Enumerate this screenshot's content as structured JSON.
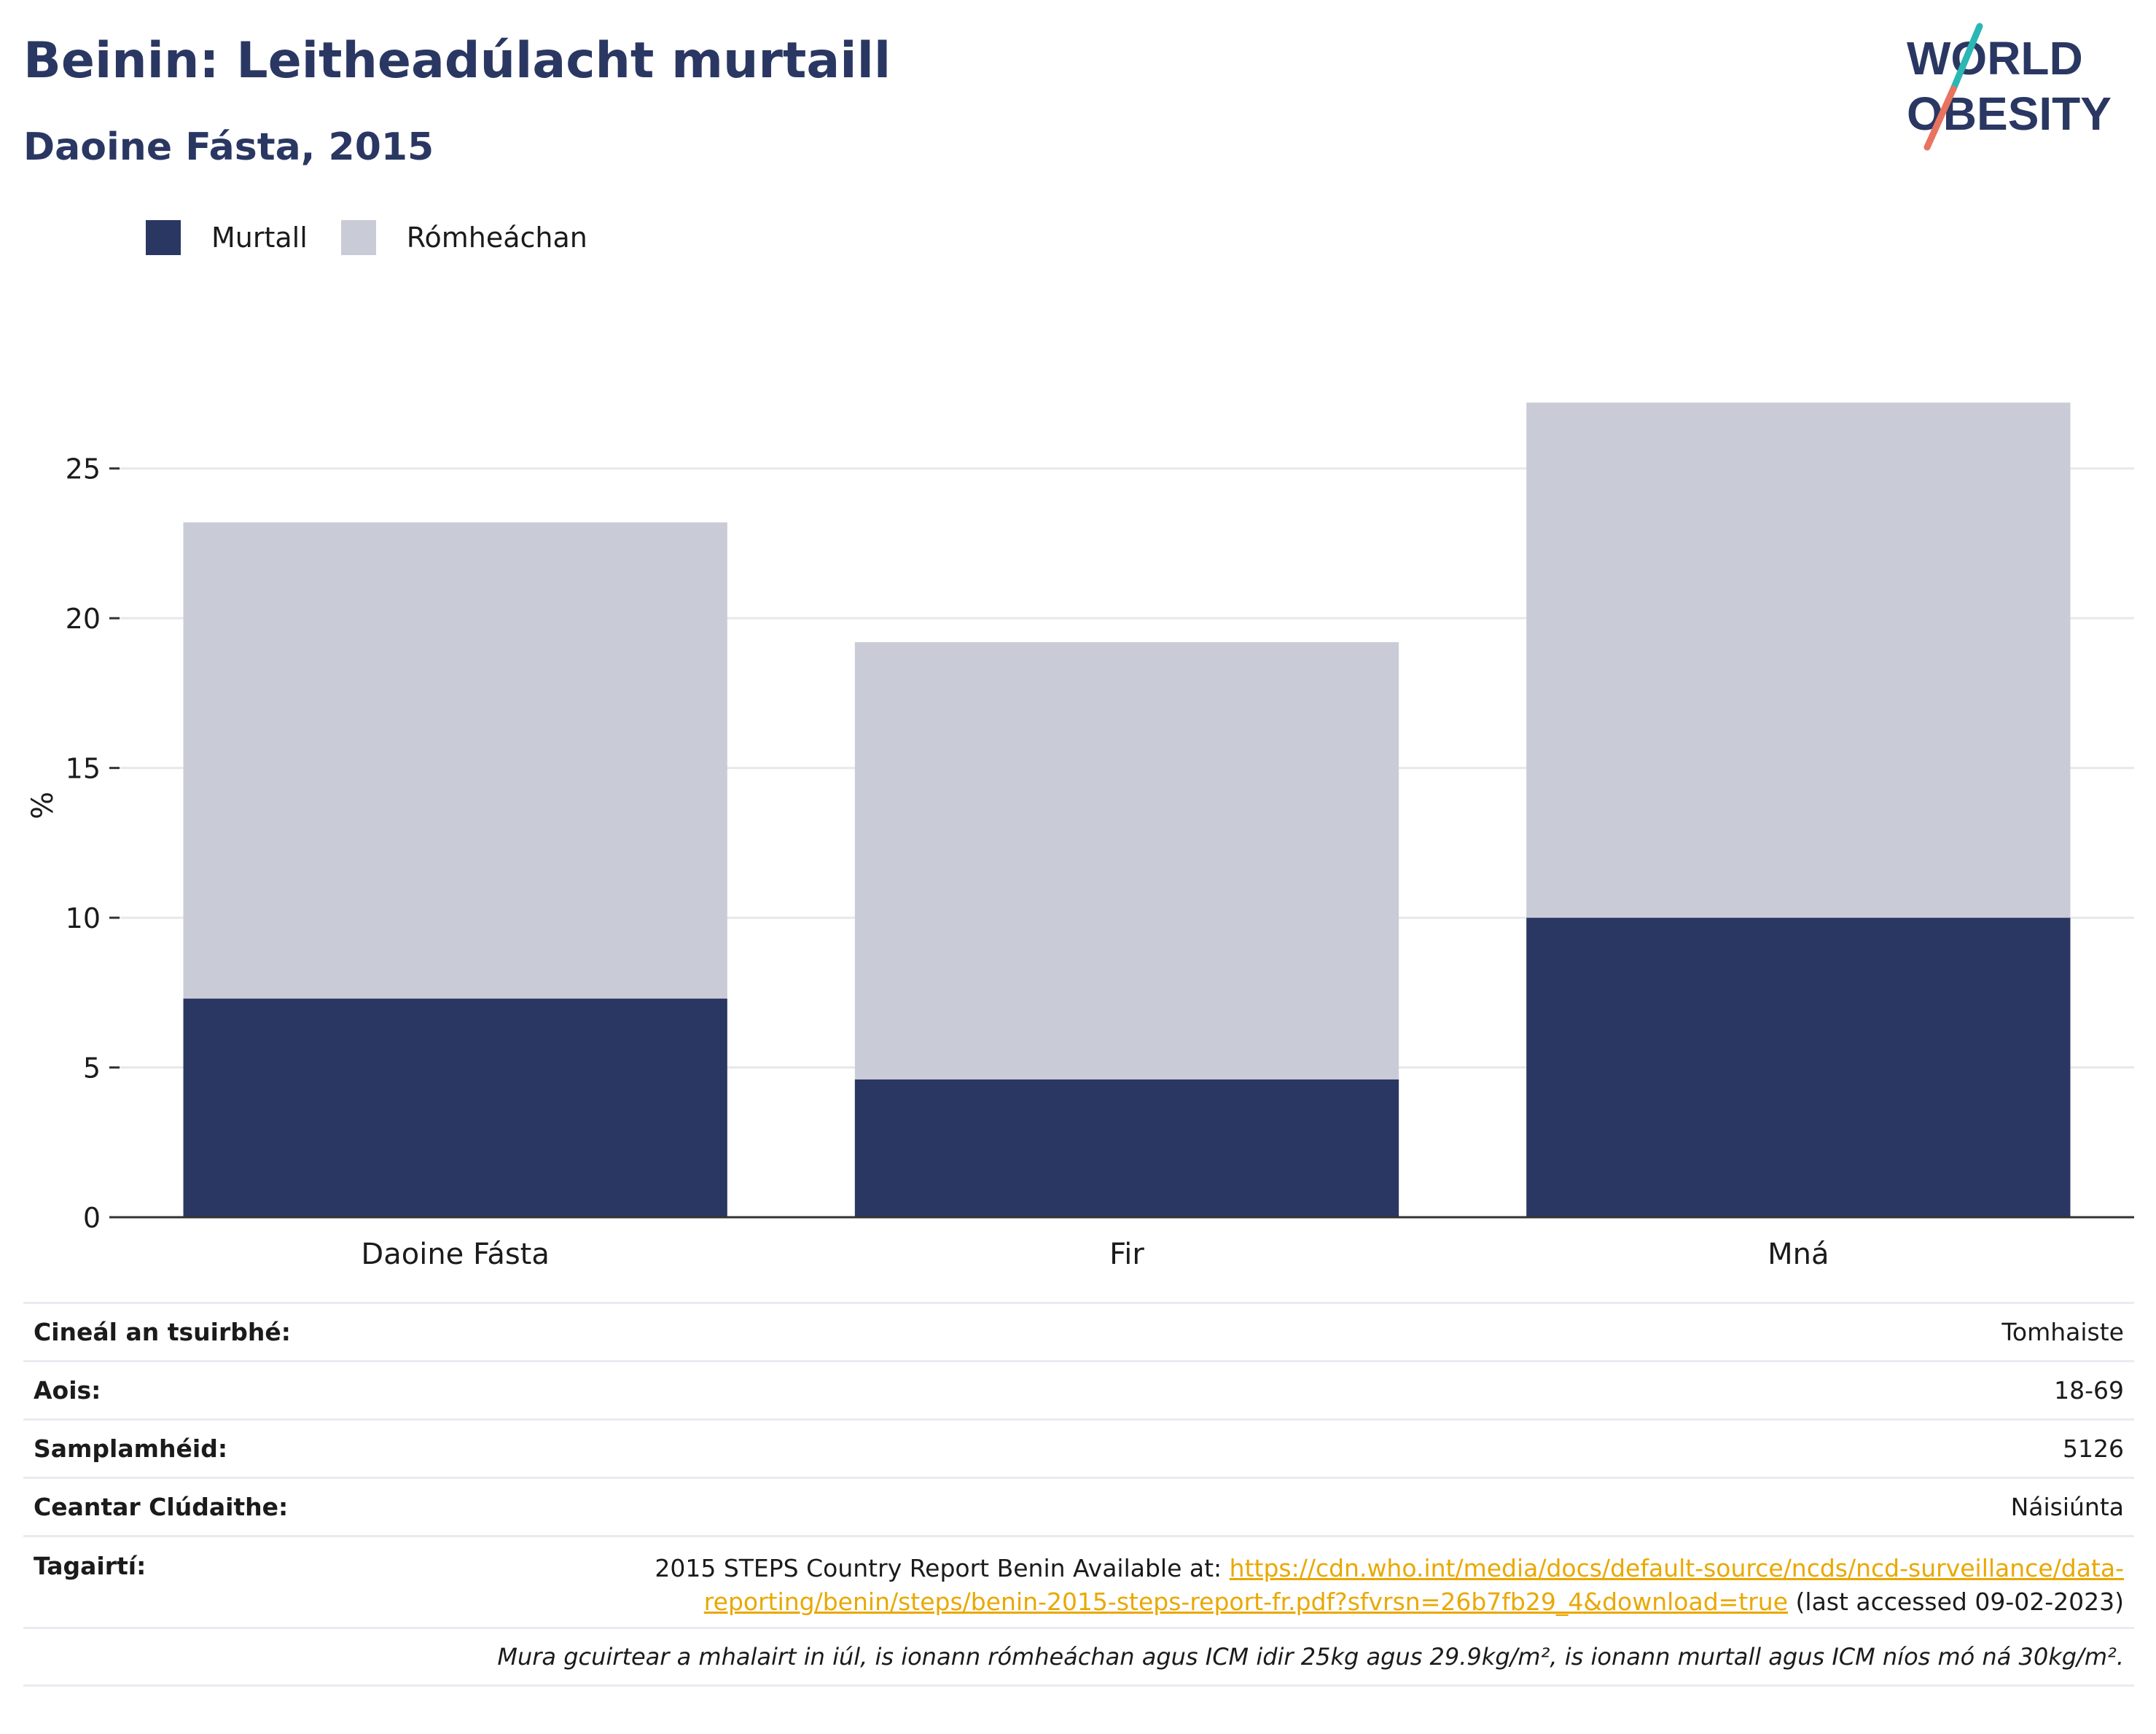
{
  "header": {
    "title": "Beinin: Leitheadúlacht murtaill",
    "subtitle": "Daoine Fásta, 2015"
  },
  "logo": {
    "line1": "WORLD",
    "line2": "OBESITY"
  },
  "chart_data": {
    "type": "bar",
    "stacked": true,
    "categories": [
      "Daoine Fásta",
      "Fir",
      "Mná"
    ],
    "series": [
      {
        "name": "Murtall",
        "values": [
          7.3,
          4.6,
          10.0
        ],
        "color": "#2a3762"
      },
      {
        "name": "Rómheáchan",
        "values": [
          15.9,
          14.6,
          17.2
        ],
        "color": "#c9cbd6"
      }
    ],
    "ylabel": "%",
    "ylim": [
      0,
      27.5
    ],
    "yticks": [
      0,
      5,
      10,
      15,
      20,
      25
    ],
    "grid": true,
    "legend": "top-left"
  },
  "info": {
    "survey_type": {
      "label": "Cineál an tsuirbhé:",
      "value": "Tomhaiste"
    },
    "age": {
      "label": "Aois:",
      "value": "18-69"
    },
    "sample": {
      "label": "Samplamhéid:",
      "value": "5126"
    },
    "coverage": {
      "label": "Ceantar Clúdaithe:",
      "value": "Náisiúnta"
    },
    "references": {
      "label": "Tagairtí:",
      "text_before": "2015 STEPS Country Report Benin Available at: ",
      "link": "https://cdn.who.int/media/docs/default-source/ncds/ncd-surveillance/data-reporting/benin/steps/benin-2015-steps-report-fr.pdf?sfvrsn=26b7fb29_4&download=true",
      "text_after": " (last accessed 09-02-2023)"
    },
    "note": "Mura gcuirtear a mhalairt in iúl, is ionann rómheáchan agus ICM idir 25kg agus 29.9kg/m², is ionann murtall agus ICM níos mó ná 30kg/m²."
  }
}
